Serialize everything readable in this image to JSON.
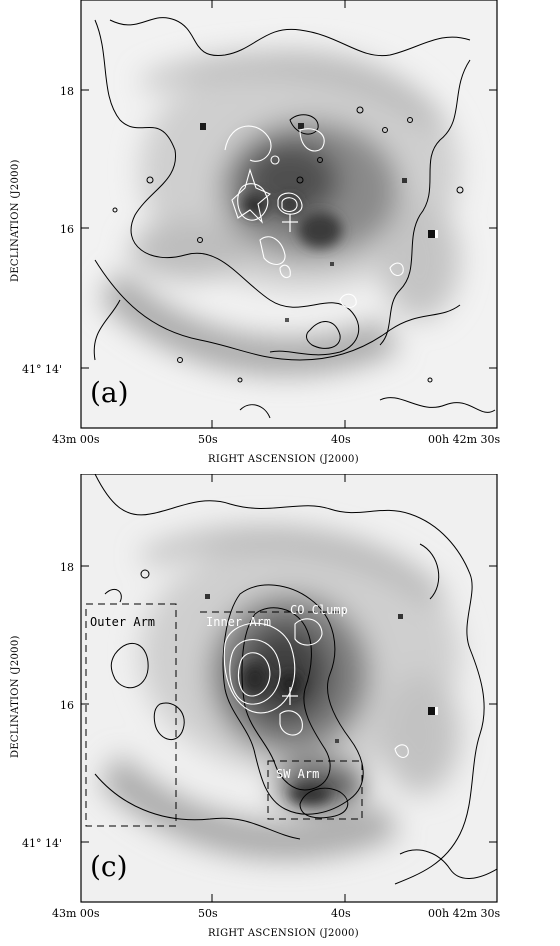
{
  "panels": [
    {
      "id": "a",
      "label": "(a)",
      "ylabel": "DECLINATION (J2000)",
      "xlabel": "RIGHT ASCENSION (J2000)",
      "yticks": [
        "18",
        "16",
        "41° 14'"
      ],
      "xticks": [
        "43m 00s",
        "50s",
        "40s",
        "00h 42m 30s"
      ]
    },
    {
      "id": "c",
      "label": "(c)",
      "ylabel": "DECLINATION (J2000)",
      "xlabel": "RIGHT ASCENSION (J2000)",
      "yticks": [
        "18",
        "16",
        "41° 14'"
      ],
      "xticks": [
        "43m 00s",
        "50s",
        "40s",
        "00h 42m 30s"
      ],
      "regions": [
        "Outer Arm",
        "Inner Arm",
        "CO Clump",
        "SW Arm"
      ]
    }
  ]
}
